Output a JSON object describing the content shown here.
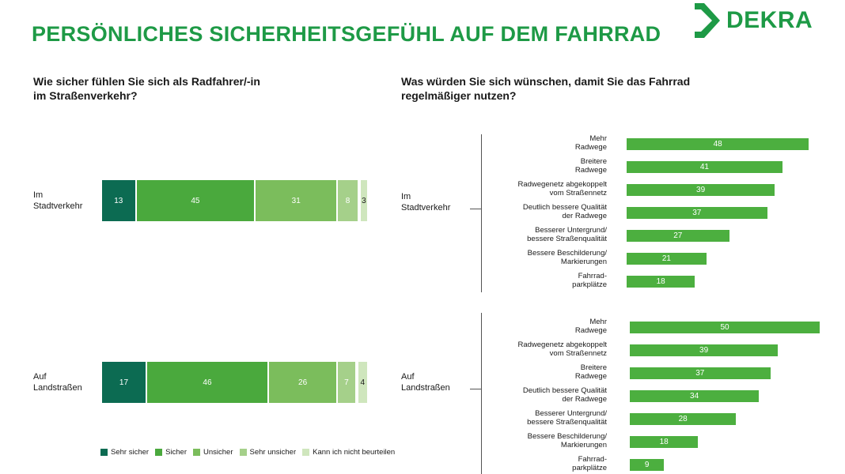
{
  "title": "PERSÖNLICHES SICHERHEITSGEFÜHL AUF DEM FAHRRAD",
  "logo_text": "DEKRA",
  "colors": {
    "accent": "#1e9a46",
    "bar": "#4caf3f"
  },
  "chart_data": [
    {
      "type": "bar",
      "stacked": true,
      "orientation": "horizontal",
      "title": "Wie sicher fühlen Sie sich als Radfahrer/-in im Straßenverkehr?",
      "title_lines": [
        "Wie sicher fühlen Sie sich als Radfahrer/-in",
        "im Straßenverkehr?"
      ],
      "categories": [
        "Im Stadtverkehr",
        "Auf Landstraßen"
      ],
      "category_lines": [
        [
          "Im",
          "Stadtverkehr"
        ],
        [
          "Auf",
          "Landstraßen"
        ]
      ],
      "series": [
        {
          "name": "Sehr sicher",
          "color": "#0c6b52",
          "values": [
            13,
            17
          ]
        },
        {
          "name": "Sicher",
          "color": "#4aa93d",
          "values": [
            45,
            46
          ]
        },
        {
          "name": "Unsicher",
          "color": "#7bbd5c",
          "values": [
            31,
            26
          ]
        },
        {
          "name": "Sehr unsicher",
          "color": "#a5d08a",
          "values": [
            8,
            7
          ]
        },
        {
          "name": "Kann ich nicht beurteilen",
          "color": "#cfe6bd",
          "values": [
            3,
            4
          ]
        }
      ],
      "legend": "bottom"
    },
    {
      "type": "bar",
      "orientation": "horizontal",
      "title": "Was würden Sie sich wünschen, damit Sie das Fahrrad regelmäßiger nutzen?",
      "title_lines": [
        "Was würden Sie sich wünschen, damit Sie das Fahrrad",
        "regelmäßiger nutzen?"
      ],
      "groups": [
        {
          "name": "Im Stadtverkehr",
          "name_lines": [
            "Im",
            "Stadtverkehr"
          ],
          "categories": [
            [
              "Mehr",
              "Radwege"
            ],
            [
              "Breitere",
              "Radwege"
            ],
            [
              "Radwegenetz abgekoppelt",
              "vom Straßennetz"
            ],
            [
              "Deutlich bessere Qualität",
              "der Radwege"
            ],
            [
              "Besserer Untergrund/",
              "bessere Straßenqualität"
            ],
            [
              "Bessere Beschilderung/",
              "Markierungen"
            ],
            [
              "Fahrrad-",
              "parkplätze"
            ]
          ],
          "values": [
            48,
            41,
            39,
            37,
            27,
            21,
            18
          ]
        },
        {
          "name": "Auf Landstraßen",
          "name_lines": [
            "Auf",
            "Landstraßen"
          ],
          "categories": [
            [
              "Mehr",
              "Radwege"
            ],
            [
              "Radwegenetz abgekoppelt",
              "vom Straßennetz"
            ],
            [
              "Breitere",
              "Radwege"
            ],
            [
              "Deutlich bessere Qualität",
              "der Radwege"
            ],
            [
              "Besserer Untergrund/",
              "bessere Straßenqualität"
            ],
            [
              "Bessere Beschilderung/",
              "Markierungen"
            ],
            [
              "Fahrrad-",
              "parkplätze"
            ]
          ],
          "values": [
            50,
            39,
            37,
            34,
            28,
            18,
            9
          ]
        }
      ]
    }
  ]
}
